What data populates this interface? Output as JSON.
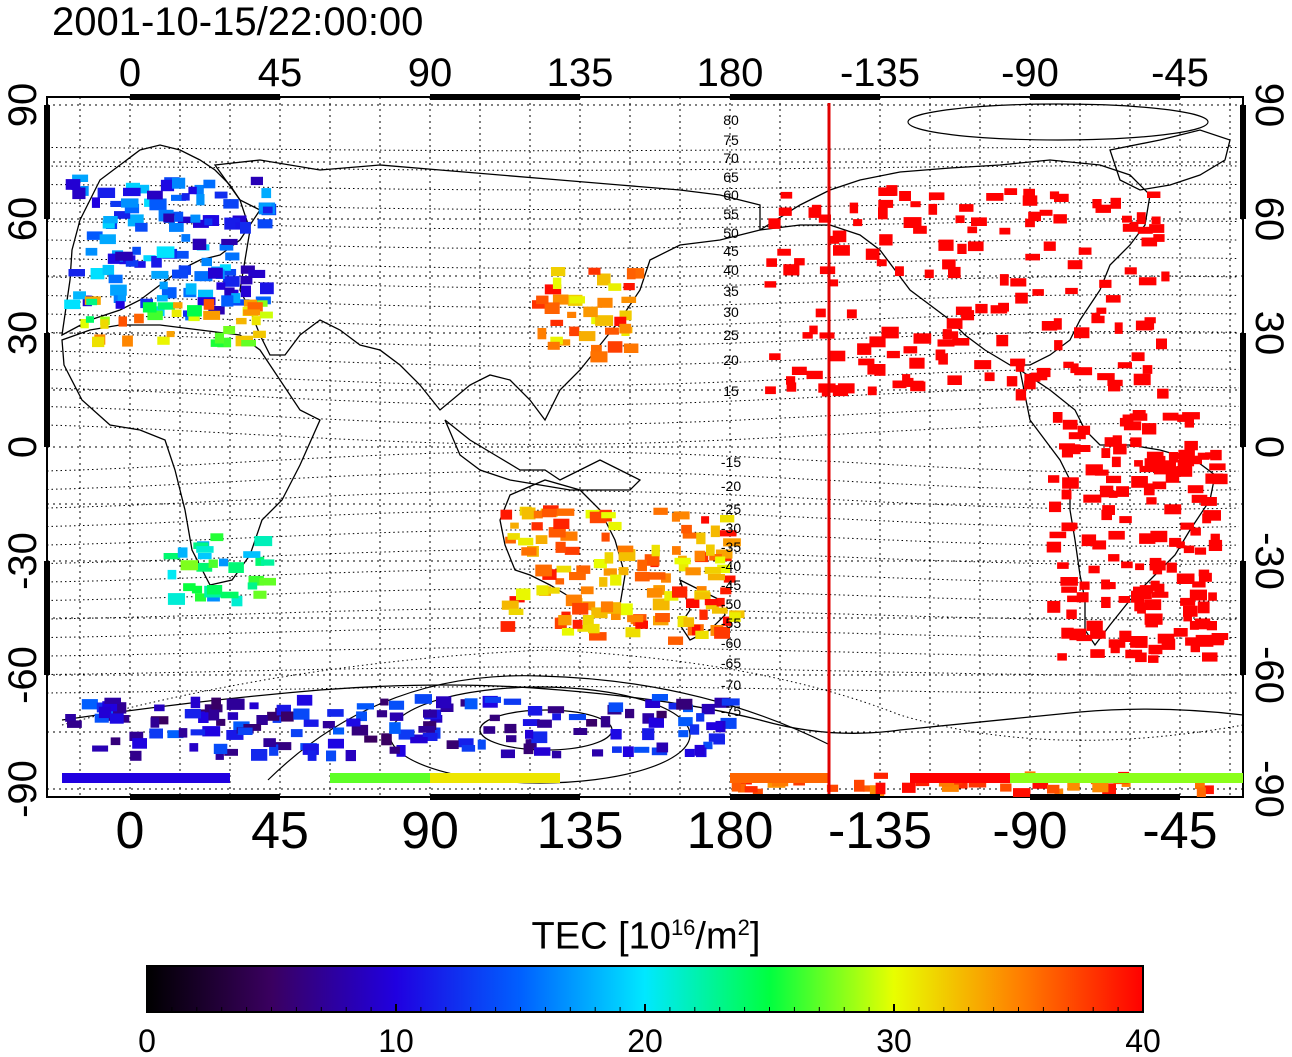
{
  "title": "2001-10-15/22:00:00",
  "map": {
    "top_axis_labels": [
      "0",
      "45",
      "90",
      "135",
      "180",
      "-135",
      "-90",
      "-45"
    ],
    "bottom_axis_labels": [
      "0",
      "45",
      "90",
      "135",
      "180",
      "-135",
      "-90",
      "-45"
    ],
    "left_axis_labels": [
      "90",
      "60",
      "30",
      "0",
      "-30",
      "-60",
      "-90"
    ],
    "right_axis_labels": [
      "90",
      "60",
      "30",
      "0",
      "-30",
      "-60",
      "-90"
    ],
    "contour_labels_north": [
      "80",
      "75",
      "70",
      "65",
      "60",
      "55",
      "50",
      "45",
      "40",
      "35",
      "30",
      "25",
      "20",
      "15"
    ],
    "contour_labels_south": [
      "-15",
      "-20",
      "-25",
      "-30",
      "-35",
      "-40",
      "-45",
      "-50",
      "-55",
      "-60",
      "-65",
      "-70",
      "-75"
    ],
    "terminator_line_color": "#e00000"
  },
  "colorbar": {
    "label": "TEC  [10",
    "label_exp": "16",
    "label_mid": "/m",
    "label_exp2": "2",
    "label_end": "]",
    "tick_labels": [
      "0",
      "10",
      "20",
      "30",
      "40"
    ],
    "stops": [
      "#000000",
      "#3a0060",
      "#2000e0",
      "#0060ff",
      "#00e8ff",
      "#00ff40",
      "#e8ff00",
      "#ff8000",
      "#ff0000"
    ]
  },
  "chart_data": {
    "type": "heatmap",
    "title": "2001-10-15/22:00:00",
    "xlabel": "",
    "ylabel": "",
    "x_tick_labels": [
      "0",
      "45",
      "90",
      "135",
      "180",
      "-135",
      "-90",
      "-45"
    ],
    "y_tick_labels": [
      "90",
      "60",
      "30",
      "0",
      "-30",
      "-60",
      "-90"
    ],
    "colorbar_label": "TEC [10^16/m^2]",
    "colorbar_range": [
      0,
      40
    ],
    "regions": [
      {
        "lon": [
          -20,
          40
        ],
        "lat": [
          35,
          72
        ],
        "tec": [
          8,
          20
        ]
      },
      {
        "lon": [
          -15,
          40
        ],
        "lat": [
          28,
          40
        ],
        "tec": [
          22,
          38
        ]
      },
      {
        "lon": [
          120,
          150
        ],
        "lat": [
          25,
          48
        ],
        "tec": [
          30,
          40
        ]
      },
      {
        "lon": [
          -170,
          -50
        ],
        "lat": [
          15,
          70
        ],
        "tec": [
          40,
          40
        ]
      },
      {
        "lon": [
          -85,
          -35
        ],
        "lat": [
          -55,
          10
        ],
        "tec": [
          40,
          40
        ]
      },
      {
        "lon": [
          110,
          180
        ],
        "lat": [
          -50,
          -15
        ],
        "tec": [
          30,
          40
        ]
      },
      {
        "lon": [
          10,
          40
        ],
        "lat": [
          -40,
          -22
        ],
        "tec": [
          15,
          28
        ]
      },
      {
        "lon": [
          -20,
          180
        ],
        "lat": [
          -80,
          -65
        ],
        "tec": [
          5,
          15
        ]
      },
      {
        "lon": [
          -180,
          -20
        ],
        "lat": [
          -90,
          -85
        ],
        "tec": [
          34,
          40
        ]
      }
    ]
  }
}
